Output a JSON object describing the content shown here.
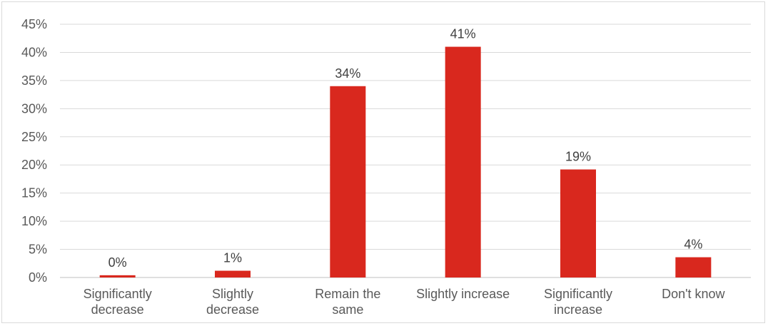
{
  "chart_data": {
    "type": "bar",
    "categories": [
      [
        "Significantly",
        "decrease"
      ],
      [
        "Slightly",
        "decrease"
      ],
      [
        "Remain the",
        "same"
      ],
      [
        "Slightly increase"
      ],
      [
        "Significantly",
        "increase"
      ],
      [
        "Don't know"
      ]
    ],
    "values": [
      0.4,
      1.2,
      34,
      41,
      19.2,
      3.6
    ],
    "data_labels": [
      "0%",
      "1%",
      "34%",
      "41%",
      "19%",
      "4%"
    ],
    "y_ticks": [
      "0%",
      "5%",
      "10%",
      "15%",
      "20%",
      "25%",
      "30%",
      "35%",
      "40%",
      "45%"
    ],
    "ylim": [
      0,
      45
    ],
    "title": "",
    "xlabel": "",
    "ylabel": "",
    "grid": true,
    "legend": "none",
    "colors": {
      "bar": "#d9281e",
      "grid": "#d9d9d9",
      "axis": "#bfbfbf"
    }
  }
}
